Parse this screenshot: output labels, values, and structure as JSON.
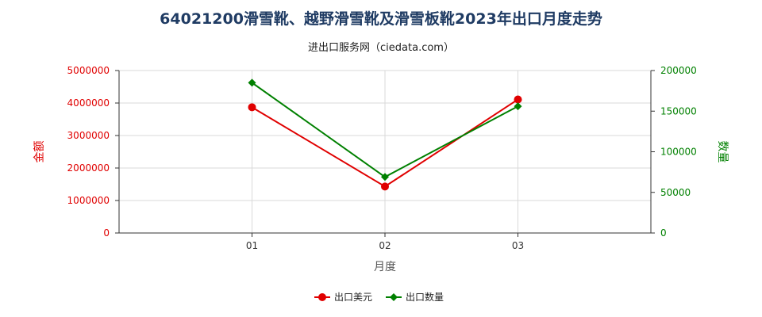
{
  "chart_data": {
    "type": "line",
    "title": "64021200滑雪靴、越野滑雪靴及滑雪板靴2023年出口月度走势",
    "subtitle": "进出口服务网（ciedata.com）",
    "xlabel": "月度",
    "ylabel_left": "金额",
    "ylabel_right": "数量",
    "categories": [
      "01",
      "02",
      "03"
    ],
    "ylim_left": [
      0,
      5000000
    ],
    "ylim_right": [
      0,
      200000
    ],
    "yticks_left": [
      0,
      1000000,
      2000000,
      3000000,
      4000000,
      5000000
    ],
    "yticks_right": [
      0,
      50000,
      100000,
      150000,
      200000
    ],
    "grid": true,
    "legend_position": "bottom",
    "series": [
      {
        "name": "出口美元",
        "axis": "left",
        "color": "#e00000",
        "marker": "circle",
        "values": [
          3870000,
          1430000,
          4110000
        ]
      },
      {
        "name": "出口数量",
        "axis": "right",
        "color": "#008000",
        "marker": "diamond",
        "values": [
          185000,
          69000,
          156000
        ]
      }
    ]
  }
}
